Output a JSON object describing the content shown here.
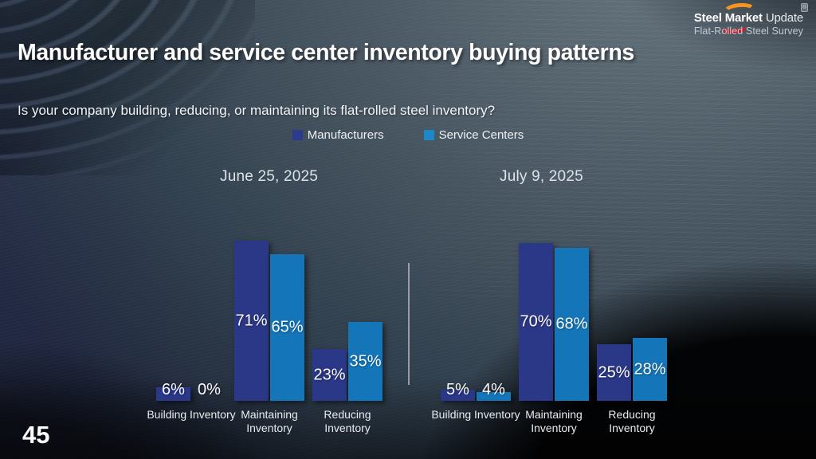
{
  "slide": {
    "title": "Manufacturer and service center inventory buying patterns",
    "question": "Is your company building, reducing, or maintaining its flat-rolled steel inventory?",
    "page_number": "45"
  },
  "logo": {
    "brand_bold": "Steel Market",
    "brand_light": " Update",
    "registered": "®",
    "subtitle": "Flat-Rolled Steel Survey",
    "swoosh_orange": "#f7941d",
    "swoosh_red": "#c8202b"
  },
  "legend": {
    "items": [
      {
        "label": "Manufacturers",
        "color": "#2c3b8e"
      },
      {
        "label": "Service Centers",
        "color": "#1d88c9"
      }
    ]
  },
  "chart_data": [
    {
      "type": "bar",
      "title": "June 25, 2025",
      "categories": [
        "Building Inventory",
        "Maintaining Inventory",
        "Reducing Inventory"
      ],
      "series": [
        {
          "name": "Manufacturers",
          "color": "#2b3787",
          "values": [
            6,
            71,
            23
          ]
        },
        {
          "name": "Service Centers",
          "color": "#1476b9",
          "values": [
            0,
            65,
            35
          ]
        }
      ],
      "unit": "%",
      "ylim": [
        0,
        100
      ],
      "grid": false,
      "value_label_position": "inside-middle (outside-top when bar < 10%)"
    },
    {
      "type": "bar",
      "title": "July 9, 2025",
      "categories": [
        "Building Inventory",
        "Maintaining Inventory",
        "Reducing Inventory"
      ],
      "series": [
        {
          "name": "Manufacturers",
          "color": "#2b3787",
          "values": [
            5,
            70,
            25
          ]
        },
        {
          "name": "Service Centers",
          "color": "#1476b9",
          "values": [
            4,
            68,
            28
          ]
        }
      ],
      "unit": "%",
      "ylim": [
        0,
        100
      ],
      "grid": false,
      "value_label_position": "inside-middle (outside-top when bar < 10%)"
    }
  ]
}
